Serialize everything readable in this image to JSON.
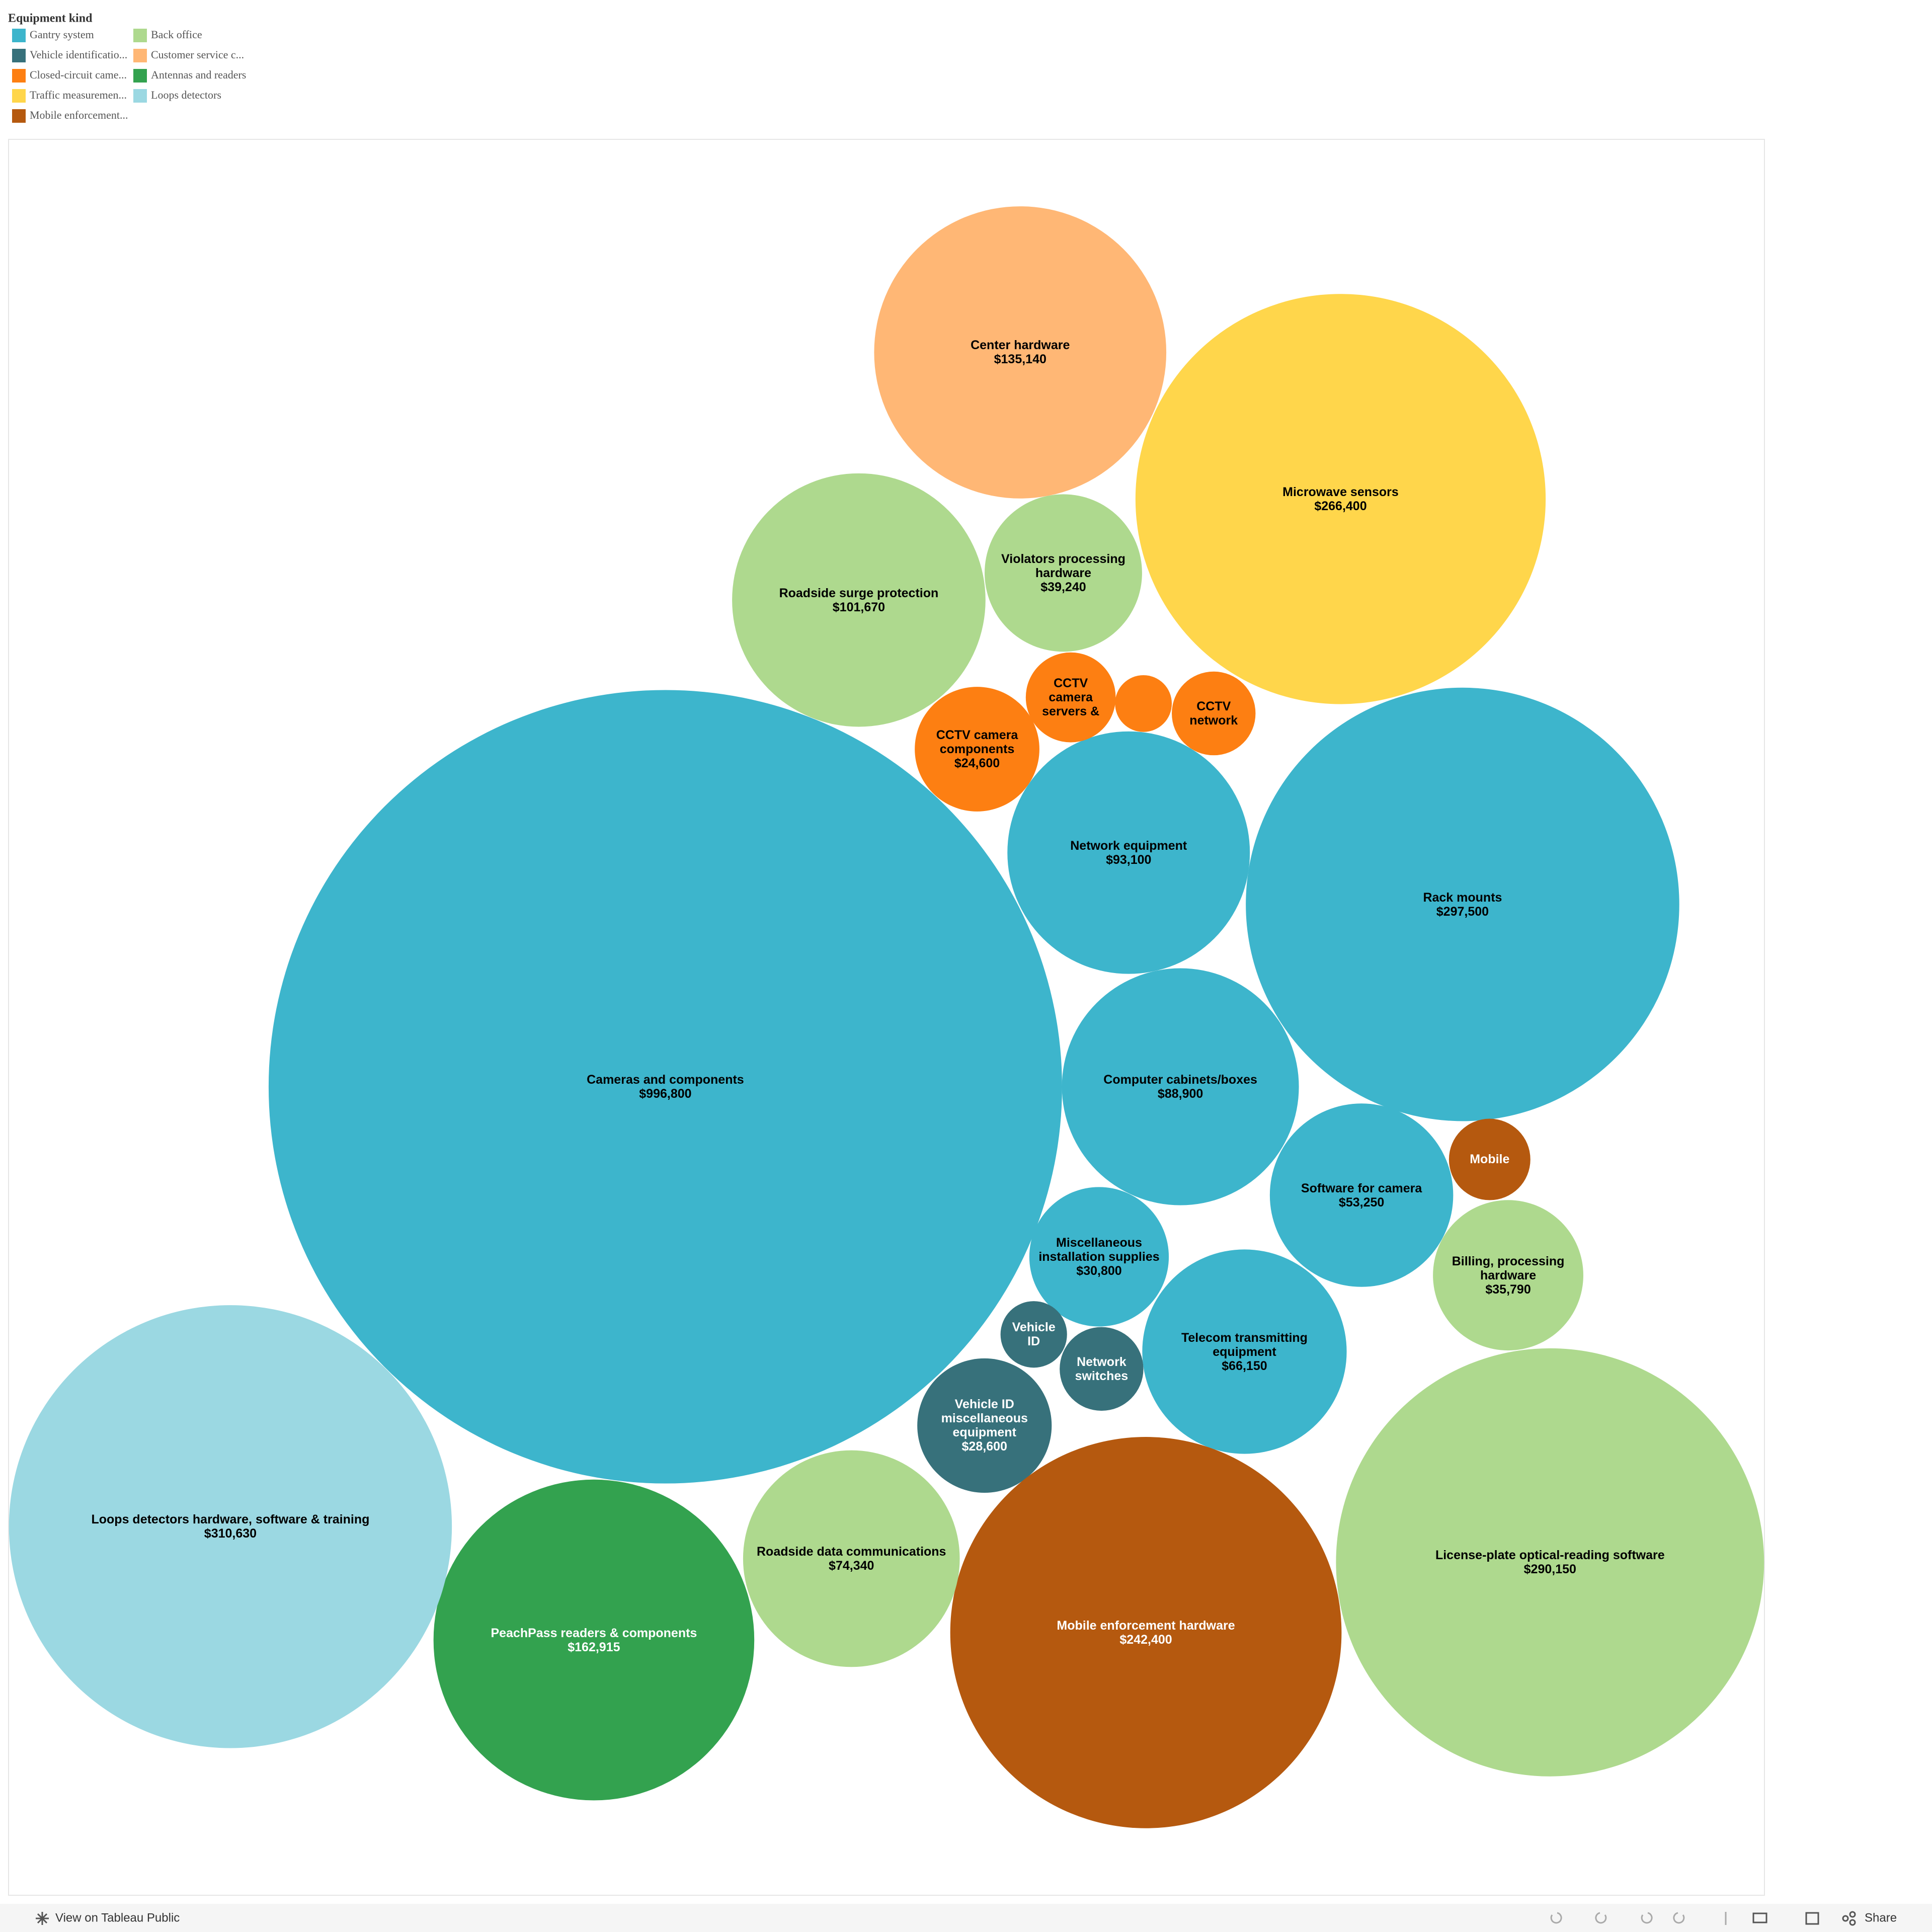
{
  "chart_data": {
    "type": "bubble",
    "legend_title": "Equipment kind",
    "series": [
      {
        "name": "Gantry system",
        "color": "#3db5cc",
        "labels": [
          "Cameras and components",
          "Rack mounts",
          "Network equipment",
          "Computer cabinets/boxes",
          "Software for camera",
          "Telecom transmitting equipment",
          "Miscellaneous installation supplies"
        ],
        "values": [
          996800,
          297500,
          93100,
          88900,
          53250,
          66150,
          30800
        ],
        "value_labels": [
          "$996,800",
          "$297,500",
          "$93,100",
          "$88,900",
          "$53,250",
          "$66,150",
          "$30,800"
        ]
      },
      {
        "name": "Vehicle identificatio...",
        "color": "#37717b",
        "labels": [
          "Vehicle ID miscellaneous equipment",
          "Vehicle ID",
          "Network switches"
        ],
        "values": [
          28600,
          7000,
          11100
        ],
        "value_labels": [
          "$28,600",
          null,
          null
        ]
      },
      {
        "name": "Closed-circuit came...",
        "color": "#fd7f12",
        "labels": [
          "CCTV camera components",
          "CCTV camera servers &",
          null,
          "CCTV network"
        ],
        "values": [
          24600,
          12800,
          5100,
          11100
        ],
        "value_labels": [
          "$24,600",
          null,
          null,
          null
        ]
      },
      {
        "name": "Traffic measuremen...",
        "color": "#ffd64b",
        "labels": [
          "Microwave sensors"
        ],
        "values": [
          266400
        ],
        "value_labels": [
          "$266,400"
        ]
      },
      {
        "name": "Mobile enforcement...",
        "color": "#b5590f",
        "labels": [
          "Mobile enforcement hardware",
          "Mobile"
        ],
        "values": [
          242400,
          10500
        ],
        "value_labels": [
          "$242,400",
          null
        ]
      },
      {
        "name": "Back office",
        "color": "#aed98e",
        "labels": [
          "Roadside surge protection",
          "Violators processing hardware",
          "Billing, processing hardware",
          "Roadside data communications",
          "License-plate optical-reading software"
        ],
        "values": [
          101670,
          39240,
          35790,
          74340,
          290150
        ],
        "value_labels": [
          "$101,670",
          "$39,240",
          "$35,790",
          "$74,340",
          "$290,150"
        ]
      },
      {
        "name": "Customer service c...",
        "color": "#ffb775",
        "labels": [
          "Center hardware"
        ],
        "values": [
          135140
        ],
        "value_labels": [
          "$135,140"
        ]
      },
      {
        "name": "Antennas and readers",
        "color": "#33a24f",
        "labels": [
          "PeachPass readers & components"
        ],
        "values": [
          162915
        ],
        "value_labels": [
          "$162,915"
        ]
      },
      {
        "name": "Loops detectors",
        "color": "#9bd8e2",
        "labels": [
          "Loops detectors hardware, software & training"
        ],
        "values": [
          310630
        ],
        "value_labels": [
          "$310,630"
        ]
      }
    ]
  },
  "toolbar": {
    "view_link": "View on Tableau Public",
    "share": "Share"
  }
}
